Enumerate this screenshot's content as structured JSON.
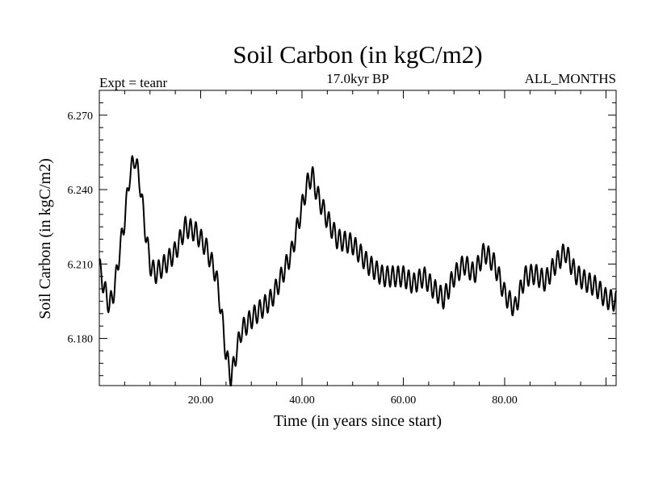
{
  "chart_data": {
    "type": "line",
    "title": "Soil Carbon (in kgC/m2)",
    "subtitle_left": "Expt = teanr",
    "subtitle_center": "17.0kyr BP",
    "subtitle_right": "ALL_MONTHS",
    "xlabel": "Time (in years since start)",
    "ylabel": "Soil Carbon (in kgC/m2)",
    "xlim": [
      0,
      102
    ],
    "ylim": [
      6.161,
      6.28
    ],
    "xticks": [
      20,
      40,
      60,
      80
    ],
    "xtick_labels": [
      "20.00",
      "40.00",
      "60.00",
      "80.00"
    ],
    "yticks": [
      6.18,
      6.21,
      6.24,
      6.27
    ],
    "ytick_labels": [
      "6.180",
      "6.210",
      "6.240",
      "6.270"
    ],
    "grid": false,
    "series": [
      {
        "name": "Soil Carbon",
        "trend": {
          "x": [
            0,
            1,
            2,
            3,
            4,
            5,
            6,
            7,
            8,
            9,
            10,
            11,
            13,
            15,
            17,
            19,
            21,
            23,
            24,
            25,
            26,
            27,
            28,
            30,
            32,
            34,
            36,
            38,
            40,
            41,
            42,
            43,
            45,
            47,
            50,
            53,
            56,
            60,
            62,
            64,
            66,
            68,
            70,
            72,
            74,
            76,
            78,
            80,
            82,
            84,
            86,
            88,
            90,
            92,
            94,
            96,
            98,
            100,
            102
          ],
          "y": [
            6.209,
            6.2,
            6.193,
            6.2,
            6.215,
            6.228,
            6.246,
            6.253,
            6.243,
            6.225,
            6.21,
            6.206,
            6.21,
            6.215,
            6.225,
            6.223,
            6.217,
            6.206,
            6.192,
            6.174,
            6.164,
            6.174,
            6.183,
            6.188,
            6.192,
            6.196,
            6.205,
            6.215,
            6.233,
            6.242,
            6.246,
            6.238,
            6.228,
            6.22,
            6.218,
            6.21,
            6.205,
            6.205,
            6.202,
            6.205,
            6.2,
            6.196,
            6.205,
            6.21,
            6.206,
            6.215,
            6.21,
            6.198,
            6.192,
            6.205,
            6.206,
            6.203,
            6.21,
            6.215,
            6.206,
            6.203,
            6.201,
            6.196,
            6.195
          ]
        },
        "cycle_period_years": 1.05,
        "cycle_amplitude": 0.0042,
        "sample_step_years": 0.1
      }
    ]
  }
}
